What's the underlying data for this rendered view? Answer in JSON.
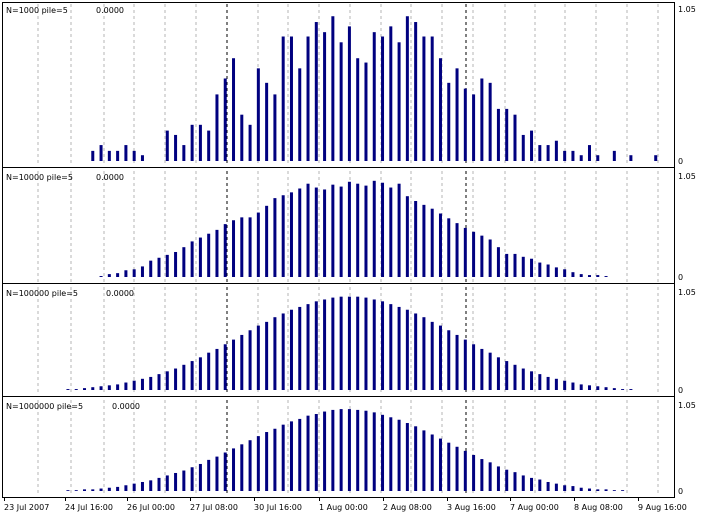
{
  "chart_data": {
    "type": "bar",
    "layout": "stacked-panels",
    "colors": {
      "bar": "#00007f",
      "grid": "#b4b4b4",
      "frame": "#000000",
      "background": "#ffffff"
    },
    "grid": true,
    "x_ticks": [
      "23 Jul 2007",
      "24 Jul 16:00",
      "26 Jul 00:00",
      "27 Jul 08:00",
      "30 Jul 16:00",
      "1 Aug 00:00",
      "2 Aug 08:00",
      "3 Aug 16:00",
      "7 Aug 00:00",
      "8 Aug 08:00",
      "9 Aug 16:00"
    ],
    "panels": [
      {
        "name": "N=1000",
        "label": "N=1000  pile=5",
        "value_label": "0.0000",
        "ylim": [
          0,
          1.05
        ],
        "y_ticks": [
          "1.05",
          "0"
        ],
        "values": [
          0,
          0,
          0,
          0,
          0,
          0,
          0,
          0,
          0,
          0,
          0.07,
          0.11,
          0.07,
          0.07,
          0.11,
          0.07,
          0.04,
          0,
          0,
          0.21,
          0.18,
          0.11,
          0.25,
          0.25,
          0.21,
          0.46,
          0.57,
          0.71,
          0.32,
          0.25,
          0.64,
          0.54,
          0.46,
          0.86,
          0.86,
          0.64,
          0.86,
          0.96,
          0.89,
          1.0,
          0.82,
          0.93,
          0.71,
          0.68,
          0.89,
          0.86,
          0.93,
          0.82,
          1.0,
          0.96,
          0.86,
          0.86,
          0.71,
          0.54,
          0.64,
          0.5,
          0.46,
          0.57,
          0.54,
          0.36,
          0.36,
          0.32,
          0.18,
          0.21,
          0.11,
          0.11,
          0.14,
          0.07,
          0.07,
          0.04,
          0.11,
          0.04,
          0,
          0.07,
          0,
          0.04,
          0,
          0,
          0.04,
          0
        ]
      },
      {
        "name": "N=10000",
        "label": "N=10000  pile=5",
        "value_label": "0.0000",
        "ylim": [
          0,
          1.05
        ],
        "y_ticks": [
          "1.05",
          "0"
        ],
        "values": [
          0,
          0,
          0,
          0,
          0,
          0,
          0,
          0,
          0,
          0,
          0,
          0.01,
          0.03,
          0.04,
          0.07,
          0.08,
          0.11,
          0.17,
          0.2,
          0.23,
          0.26,
          0.31,
          0.37,
          0.41,
          0.45,
          0.49,
          0.55,
          0.59,
          0.62,
          0.62,
          0.67,
          0.74,
          0.82,
          0.85,
          0.88,
          0.92,
          0.97,
          0.93,
          0.91,
          0.96,
          0.94,
          0.99,
          0.97,
          0.95,
          1.0,
          0.98,
          0.93,
          0.97,
          0.84,
          0.79,
          0.75,
          0.71,
          0.66,
          0.61,
          0.56,
          0.51,
          0.47,
          0.43,
          0.39,
          0.31,
          0.24,
          0.24,
          0.21,
          0.19,
          0.15,
          0.13,
          0.1,
          0.08,
          0.05,
          0.03,
          0.02,
          0.02,
          0.01,
          0,
          0,
          0,
          0,
          0,
          0,
          0
        ]
      },
      {
        "name": "N=100000",
        "label": "N=100000  pile=5",
        "value_label": "0.0000",
        "ylim": [
          0,
          1.05
        ],
        "y_ticks": [
          "1.05",
          "0"
        ],
        "values": [
          0,
          0,
          0,
          0,
          0,
          0,
          0,
          0.01,
          0.01,
          0.02,
          0.03,
          0.04,
          0.05,
          0.06,
          0.08,
          0.1,
          0.12,
          0.14,
          0.17,
          0.2,
          0.23,
          0.27,
          0.31,
          0.35,
          0.4,
          0.44,
          0.49,
          0.54,
          0.59,
          0.64,
          0.69,
          0.73,
          0.78,
          0.82,
          0.86,
          0.89,
          0.92,
          0.95,
          0.97,
          0.99,
          1.0,
          1.0,
          1.0,
          0.99,
          0.97,
          0.95,
          0.92,
          0.89,
          0.86,
          0.82,
          0.78,
          0.73,
          0.69,
          0.64,
          0.59,
          0.54,
          0.49,
          0.44,
          0.4,
          0.35,
          0.31,
          0.27,
          0.23,
          0.2,
          0.17,
          0.14,
          0.12,
          0.1,
          0.08,
          0.06,
          0.05,
          0.04,
          0.03,
          0.02,
          0.01,
          0.01,
          0,
          0,
          0,
          0
        ]
      },
      {
        "name": "N=1000000",
        "label": "N=1000000  pile=5",
        "value_label": "0.0000",
        "ylim": [
          0,
          1.05
        ],
        "y_ticks": [
          "1.05",
          "0"
        ],
        "values": [
          0,
          0,
          0,
          0,
          0,
          0,
          0,
          0.01,
          0.01,
          0.02,
          0.02,
          0.03,
          0.04,
          0.05,
          0.07,
          0.09,
          0.11,
          0.13,
          0.16,
          0.19,
          0.22,
          0.25,
          0.29,
          0.33,
          0.38,
          0.42,
          0.47,
          0.52,
          0.57,
          0.62,
          0.67,
          0.72,
          0.76,
          0.81,
          0.85,
          0.88,
          0.92,
          0.94,
          0.97,
          0.99,
          1.0,
          1.0,
          0.99,
          0.98,
          0.96,
          0.93,
          0.9,
          0.87,
          0.83,
          0.79,
          0.74,
          0.69,
          0.64,
          0.59,
          0.54,
          0.49,
          0.44,
          0.39,
          0.35,
          0.3,
          0.26,
          0.23,
          0.19,
          0.16,
          0.14,
          0.11,
          0.09,
          0.07,
          0.06,
          0.04,
          0.03,
          0.02,
          0.02,
          0.01,
          0.01,
          0,
          0,
          0,
          0,
          0
        ]
      }
    ]
  }
}
